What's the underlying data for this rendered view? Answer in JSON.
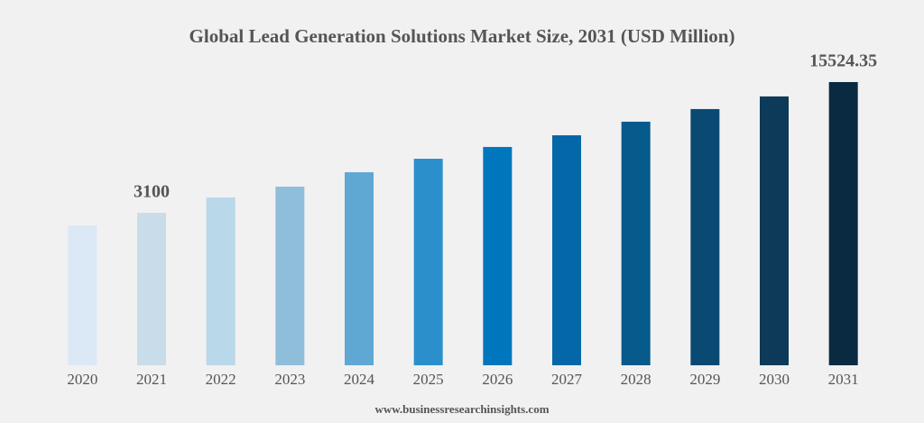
{
  "chart_data": {
    "type": "bar",
    "title": "Global Lead Generation Solutions Market Size, 2031 (USD Million)",
    "source": "www.businessresearchinsights.com",
    "categories": [
      "2020",
      "2021",
      "2022",
      "2023",
      "2024",
      "2025",
      "2026",
      "2027",
      "2028",
      "2029",
      "2030",
      "2031"
    ],
    "values": [
      1900,
      3100,
      4560,
      5590,
      6960,
      8240,
      9360,
      10470,
      11760,
      12960,
      14160,
      15524.35
    ],
    "value_labels": [
      null,
      "3100",
      null,
      null,
      null,
      null,
      null,
      null,
      null,
      null,
      null,
      "15524.35"
    ],
    "colors": [
      "#dbe8f5",
      "#c8dcea",
      "#b9d8ea",
      "#8fbedb",
      "#5fa8d3",
      "#2b8fcb",
      "#0077bd",
      "#0468a8",
      "#065a8c",
      "#0a4a72",
      "#0c3a58",
      "#0a2a42"
    ],
    "ylim": [
      -11380,
      15524.35
    ],
    "grid": false
  }
}
